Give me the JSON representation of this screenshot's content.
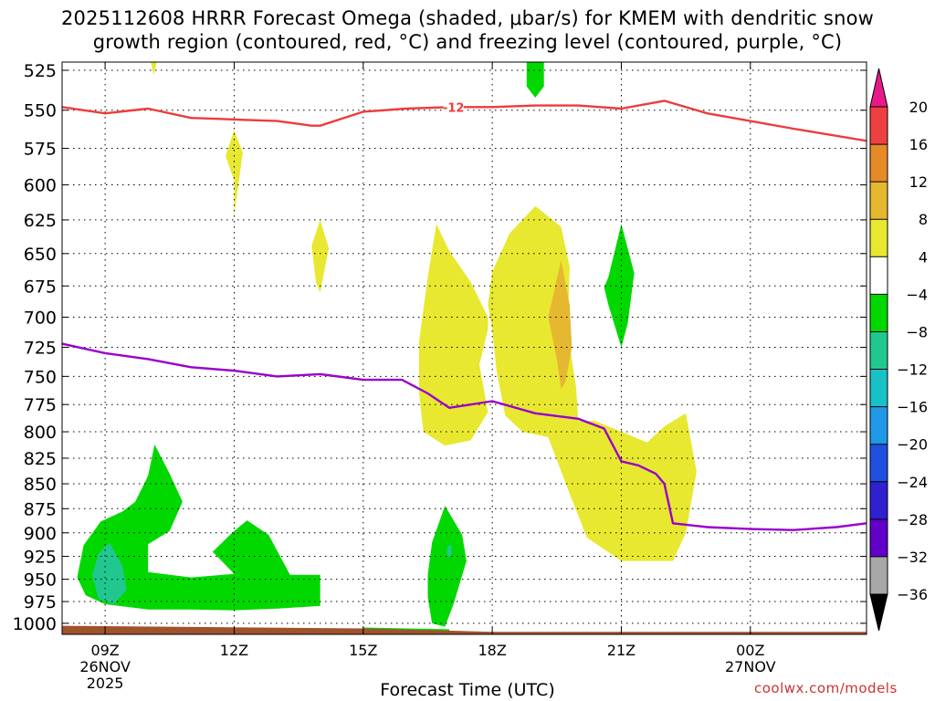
{
  "title_line1": "2025112608 HRRR Forecast Omega (shaded, μbar/s) for KMEM with dendritic snow",
  "title_line2": "growth region (contoured, red, °C) and freezing level (contoured, purple, °C)",
  "xlabel": "Forecast Time (UTC)",
  "credit": "coolwx.com/models",
  "chart_data": {
    "type": "heatmap",
    "x_unit": "hours_utc_from_2025112600",
    "x_range": [
      8,
      26.7
    ],
    "y_range": [
      520,
      1013
    ],
    "y_scale": "log",
    "ylabel": "",
    "grid": true,
    "y_ticks": [
      525,
      550,
      575,
      600,
      625,
      650,
      675,
      700,
      725,
      750,
      775,
      800,
      825,
      850,
      875,
      900,
      925,
      950,
      975,
      1000
    ],
    "x_ticks": [
      {
        "x": 9,
        "lines": [
          "09Z",
          "26NOV",
          "2025"
        ]
      },
      {
        "x": 12,
        "lines": [
          "12Z"
        ]
      },
      {
        "x": 15,
        "lines": [
          "15Z"
        ]
      },
      {
        "x": 18,
        "lines": [
          "18Z"
        ]
      },
      {
        "x": 21,
        "lines": [
          "21Z"
        ]
      },
      {
        "x": 24,
        "lines": [
          "00Z",
          "27NOV"
        ]
      }
    ],
    "colorbar": {
      "labels": [
        20,
        16,
        12,
        8,
        4,
        -4,
        -8,
        -12,
        -16,
        -20,
        -24,
        -28,
        -32,
        -36
      ],
      "colors": [
        "#e8e830",
        "#e6b830",
        "#e68a28",
        "#ee4040",
        "#e81a8a"
      ],
      "neg_colors": [
        "#ffffff",
        "#00d800",
        "#20c890",
        "#18c0c8",
        "#2098e8",
        "#2050e0",
        "#3020d0",
        "#6000c8",
        "#a000c0",
        "#a8a8a8"
      ]
    },
    "dgz_label": "-12",
    "dgz_line": [
      [
        8,
        548
      ],
      [
        9,
        552
      ],
      [
        10,
        549
      ],
      [
        11,
        555
      ],
      [
        12,
        556
      ],
      [
        13,
        557
      ],
      [
        13.8,
        560
      ],
      [
        14,
        560
      ],
      [
        15,
        551
      ],
      [
        16,
        549
      ],
      [
        17,
        548
      ],
      [
        18,
        548
      ],
      [
        19,
        547
      ],
      [
        20,
        547
      ],
      [
        21,
        549
      ],
      [
        22,
        544
      ],
      [
        23,
        552
      ],
      [
        24,
        557
      ],
      [
        25,
        562
      ],
      [
        26.7,
        570
      ]
    ],
    "freezing_line": [
      [
        8,
        722
      ],
      [
        9,
        730
      ],
      [
        10,
        735
      ],
      [
        11,
        742
      ],
      [
        12,
        745
      ],
      [
        13,
        750
      ],
      [
        14,
        748
      ],
      [
        15,
        753
      ],
      [
        15.9,
        753
      ],
      [
        16.5,
        765
      ],
      [
        17,
        778
      ],
      [
        17.5,
        775
      ],
      [
        18,
        772
      ],
      [
        19,
        783
      ],
      [
        20,
        788
      ],
      [
        20.6,
        797
      ],
      [
        21,
        828
      ],
      [
        21.4,
        832
      ],
      [
        21.8,
        840
      ],
      [
        22,
        850
      ],
      [
        22.2,
        890
      ],
      [
        23,
        894
      ],
      [
        24,
        896
      ],
      [
        25,
        897
      ],
      [
        26,
        894
      ],
      [
        26.7,
        890
      ]
    ],
    "omega_regions": [
      {
        "value": -6,
        "color": "#00d800",
        "points": [
          [
            9.4,
            878
          ],
          [
            9.7,
            868
          ],
          [
            10,
            842
          ],
          [
            10.15,
            812
          ],
          [
            10.5,
            840
          ],
          [
            10.8,
            868
          ],
          [
            10.5,
            898
          ],
          [
            10,
            912
          ],
          [
            10,
            942
          ],
          [
            11,
            948
          ],
          [
            12,
            944
          ],
          [
            11.5,
            920
          ],
          [
            12,
            898
          ],
          [
            12.3,
            887
          ],
          [
            12.8,
            902
          ],
          [
            13.3,
            945
          ],
          [
            13.7,
            945
          ],
          [
            14,
            945
          ],
          [
            14,
            980
          ],
          [
            13,
            983
          ],
          [
            12,
            985
          ],
          [
            11,
            984
          ],
          [
            10,
            984
          ],
          [
            9,
            978
          ],
          [
            8.55,
            968
          ],
          [
            8.35,
            948
          ],
          [
            8.5,
            913
          ],
          [
            8.9,
            888
          ]
        ]
      },
      {
        "value": -10,
        "color": "#20c890",
        "points": [
          [
            8.7,
            945
          ],
          [
            8.85,
            922
          ],
          [
            9.1,
            910
          ],
          [
            9.4,
            935
          ],
          [
            9.5,
            962
          ],
          [
            9.2,
            978
          ],
          [
            8.85,
            972
          ]
        ]
      },
      {
        "value": -6,
        "color": "#00d800",
        "points": [
          [
            16.6,
            910
          ],
          [
            16.9,
            872
          ],
          [
            17.3,
            902
          ],
          [
            17.4,
            930
          ],
          [
            17.1,
            978
          ],
          [
            16.9,
            1004
          ],
          [
            16.6,
            1000
          ],
          [
            16.5,
            970
          ],
          [
            16.5,
            945
          ]
        ]
      },
      {
        "value": -10,
        "color": "#20c890",
        "points": [
          [
            16.95,
            915
          ],
          [
            17.05,
            912
          ],
          [
            17.05,
            925
          ],
          [
            16.95,
            925
          ]
        ]
      },
      {
        "value": -6,
        "color": "#00d800",
        "points": [
          [
            15,
            1005
          ],
          [
            16,
            1006
          ],
          [
            17,
            1007
          ],
          [
            17,
            1012
          ],
          [
            16,
            1013
          ],
          [
            15,
            1010
          ]
        ]
      },
      {
        "value": -6,
        "color": "#00d800",
        "points": [
          [
            20.7,
            668
          ],
          [
            21,
            628
          ],
          [
            21.3,
            665
          ],
          [
            21.15,
            705
          ],
          [
            21,
            725
          ],
          [
            20.7,
            690
          ],
          [
            20.6,
            676
          ]
        ]
      },
      {
        "value": -6,
        "color": "#00d800",
        "points": [
          [
            18.8,
            520
          ],
          [
            19.2,
            520
          ],
          [
            19.2,
            535
          ],
          [
            19,
            542
          ],
          [
            18.8,
            535
          ]
        ]
      },
      {
        "value": 6,
        "color": "#e8e830",
        "points": [
          [
            16.3,
            720
          ],
          [
            16.5,
            668
          ],
          [
            16.7,
            628
          ],
          [
            17,
            648
          ],
          [
            17.5,
            672
          ],
          [
            17.9,
            700
          ],
          [
            17.9,
            710
          ],
          [
            17.7,
            740
          ],
          [
            17.8,
            760
          ],
          [
            17.9,
            782
          ],
          [
            17.5,
            808
          ],
          [
            16.9,
            813
          ],
          [
            16.4,
            800
          ],
          [
            16.3,
            765
          ]
        ]
      },
      {
        "value": 6,
        "color": "#e8e830",
        "points": [
          [
            18,
            664
          ],
          [
            18.4,
            635
          ],
          [
            19,
            615
          ],
          [
            19.6,
            630
          ],
          [
            19.8,
            660
          ],
          [
            19.75,
            712
          ],
          [
            19.95,
            760
          ],
          [
            20,
            790
          ],
          [
            20.4,
            790
          ],
          [
            21,
            800
          ],
          [
            21.6,
            810
          ],
          [
            22,
            795
          ],
          [
            22.5,
            783
          ],
          [
            22.75,
            838
          ],
          [
            22.5,
            900
          ],
          [
            22.2,
            930
          ],
          [
            21,
            930
          ],
          [
            20.2,
            905
          ],
          [
            19.8,
            860
          ],
          [
            19.3,
            805
          ],
          [
            18.7,
            800
          ],
          [
            18.3,
            785
          ],
          [
            18.1,
            745
          ],
          [
            18,
            710
          ],
          [
            17.9,
            690
          ]
        ]
      },
      {
        "value": 10,
        "color": "#e6b830",
        "points": [
          [
            19.3,
            700
          ],
          [
            19.6,
            655
          ],
          [
            19.8,
            690
          ],
          [
            19.85,
            725
          ],
          [
            19.7,
            755
          ],
          [
            19.6,
            761
          ],
          [
            19.5,
            735
          ]
        ]
      },
      {
        "value": 6,
        "color": "#e8e830",
        "points": [
          [
            12,
            597
          ],
          [
            11.8,
            580
          ],
          [
            12,
            563
          ],
          [
            12.2,
            578
          ],
          [
            12,
            622
          ]
        ]
      },
      {
        "value": 6,
        "color": "#e8e830",
        "points": [
          [
            13.8,
            644
          ],
          [
            14,
            625
          ],
          [
            14.2,
            646
          ],
          [
            14,
            680
          ],
          [
            13.9,
            672
          ]
        ]
      },
      {
        "value": 6,
        "color": "#e8e830",
        "points": [
          [
            10.06,
            520
          ],
          [
            10.2,
            520
          ],
          [
            10.13,
            528
          ]
        ]
      }
    ],
    "ground": {
      "color": "#a0522d",
      "top_left": 1003,
      "top_right": 1010,
      "bottom": 1013
    }
  }
}
